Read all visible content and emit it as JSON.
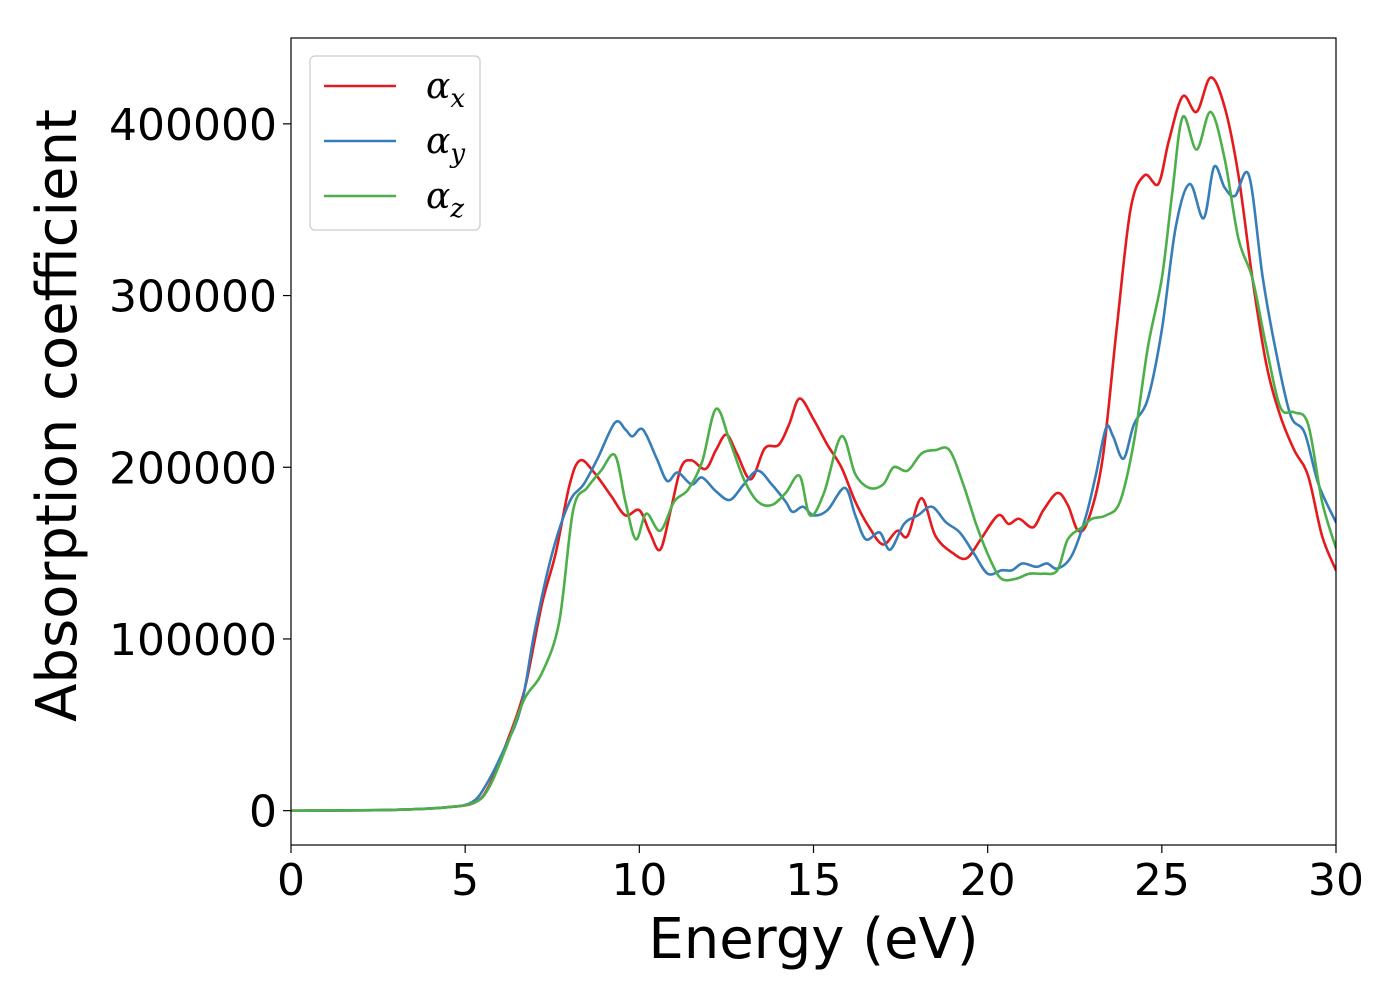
{
  "chart_data": {
    "type": "line",
    "title": "",
    "xlabel": "Energy (eV)",
    "ylabel": "Absorption coefficient",
    "xlim": [
      0,
      30
    ],
    "ylim": [
      -20000,
      450000
    ],
    "x_ticks": [
      0,
      5,
      10,
      15,
      20,
      25,
      30
    ],
    "y_ticks": [
      0,
      100000,
      200000,
      300000,
      400000
    ],
    "grid": false,
    "legend_position": "top-left",
    "series": [
      {
        "name": "αx",
        "symbol": "α",
        "subscript": "x",
        "color": "#e41a1c",
        "points": [
          [
            0,
            0
          ],
          [
            3,
            500
          ],
          [
            4.5,
            2000
          ],
          [
            5.3,
            5000
          ],
          [
            5.7,
            15000
          ],
          [
            6.2,
            40000
          ],
          [
            6.7,
            70000
          ],
          [
            7.2,
            120000
          ],
          [
            7.6,
            150000
          ],
          [
            8,
            190000
          ],
          [
            8.3,
            204000
          ],
          [
            8.7,
            197000
          ],
          [
            9.2,
            183000
          ],
          [
            9.6,
            172000
          ],
          [
            10,
            175000
          ],
          [
            10.3,
            162000
          ],
          [
            10.6,
            152000
          ],
          [
            10.9,
            175000
          ],
          [
            11.2,
            200000
          ],
          [
            11.5,
            204000
          ],
          [
            11.9,
            199000
          ],
          [
            12.2,
            210000
          ],
          [
            12.5,
            219000
          ],
          [
            12.8,
            208000
          ],
          [
            13.2,
            193000
          ],
          [
            13.6,
            211000
          ],
          [
            14,
            213000
          ],
          [
            14.3,
            225000
          ],
          [
            14.6,
            240000
          ],
          [
            15,
            228000
          ],
          [
            15.4,
            213000
          ],
          [
            15.8,
            200000
          ],
          [
            16.2,
            180000
          ],
          [
            16.6,
            165000
          ],
          [
            17,
            155000
          ],
          [
            17.4,
            163000
          ],
          [
            17.7,
            160000
          ],
          [
            18.1,
            182000
          ],
          [
            18.5,
            160000
          ],
          [
            19,
            150000
          ],
          [
            19.4,
            147000
          ],
          [
            19.8,
            158000
          ],
          [
            20.3,
            172000
          ],
          [
            20.6,
            167000
          ],
          [
            20.9,
            170000
          ],
          [
            21.3,
            165000
          ],
          [
            21.6,
            175000
          ],
          [
            22,
            185000
          ],
          [
            22.3,
            178000
          ],
          [
            22.6,
            163000
          ],
          [
            22.9,
            170000
          ],
          [
            23.3,
            205000
          ],
          [
            23.7,
            280000
          ],
          [
            24.1,
            350000
          ],
          [
            24.5,
            370000
          ],
          [
            24.9,
            365000
          ],
          [
            25.2,
            390000
          ],
          [
            25.6,
            416000
          ],
          [
            26,
            407000
          ],
          [
            26.4,
            427000
          ],
          [
            26.8,
            410000
          ],
          [
            27.2,
            370000
          ],
          [
            27.6,
            310000
          ],
          [
            28,
            260000
          ],
          [
            28.4,
            230000
          ],
          [
            28.8,
            210000
          ],
          [
            29.2,
            195000
          ],
          [
            29.6,
            160000
          ],
          [
            30,
            140000
          ]
        ]
      },
      {
        "name": "αy",
        "symbol": "α",
        "subscript": "y",
        "color": "#377eb8",
        "points": [
          [
            0,
            0
          ],
          [
            3,
            500
          ],
          [
            4.5,
            2000
          ],
          [
            5.2,
            5000
          ],
          [
            5.6,
            15000
          ],
          [
            6.1,
            35000
          ],
          [
            6.6,
            60000
          ],
          [
            7,
            105000
          ],
          [
            7.5,
            150000
          ],
          [
            8,
            180000
          ],
          [
            8.4,
            190000
          ],
          [
            8.8,
            205000
          ],
          [
            9.3,
            226000
          ],
          [
            9.6,
            222000
          ],
          [
            9.8,
            218000
          ],
          [
            10.1,
            222000
          ],
          [
            10.5,
            205000
          ],
          [
            10.8,
            192000
          ],
          [
            11.1,
            197000
          ],
          [
            11.5,
            190000
          ],
          [
            11.8,
            194000
          ],
          [
            12.2,
            186000
          ],
          [
            12.6,
            181000
          ],
          [
            13,
            190000
          ],
          [
            13.4,
            198000
          ],
          [
            13.8,
            190000
          ],
          [
            14.2,
            180000
          ],
          [
            14.4,
            174000
          ],
          [
            14.7,
            177000
          ],
          [
            15,
            172000
          ],
          [
            15.4,
            175000
          ],
          [
            15.9,
            188000
          ],
          [
            16.2,
            172000
          ],
          [
            16.5,
            158000
          ],
          [
            16.9,
            162000
          ],
          [
            17.2,
            152000
          ],
          [
            17.6,
            167000
          ],
          [
            18,
            172000
          ],
          [
            18.4,
            177000
          ],
          [
            18.8,
            168000
          ],
          [
            19.2,
            162000
          ],
          [
            19.6,
            150000
          ],
          [
            20,
            138000
          ],
          [
            20.4,
            140000
          ],
          [
            20.7,
            140000
          ],
          [
            21,
            144000
          ],
          [
            21.4,
            142000
          ],
          [
            21.7,
            144000
          ],
          [
            22,
            141000
          ],
          [
            22.4,
            148000
          ],
          [
            22.8,
            170000
          ],
          [
            23.1,
            195000
          ],
          [
            23.4,
            223000
          ],
          [
            23.6,
            218000
          ],
          [
            23.9,
            205000
          ],
          [
            24.2,
            225000
          ],
          [
            24.6,
            240000
          ],
          [
            25,
            280000
          ],
          [
            25.4,
            340000
          ],
          [
            25.8,
            365000
          ],
          [
            26.2,
            345000
          ],
          [
            26.5,
            375000
          ],
          [
            26.8,
            363000
          ],
          [
            27.1,
            358000
          ],
          [
            27.5,
            370000
          ],
          [
            27.9,
            310000
          ],
          [
            28.3,
            265000
          ],
          [
            28.7,
            230000
          ],
          [
            29.1,
            220000
          ],
          [
            29.5,
            190000
          ],
          [
            30,
            168000
          ]
        ]
      },
      {
        "name": "αz",
        "symbol": "α",
        "subscript": "z",
        "color": "#4daf4a",
        "points": [
          [
            0,
            0
          ],
          [
            3,
            500
          ],
          [
            4.5,
            2000
          ],
          [
            5.3,
            5000
          ],
          [
            5.7,
            14000
          ],
          [
            6.2,
            38000
          ],
          [
            6.7,
            65000
          ],
          [
            7.2,
            80000
          ],
          [
            7.7,
            110000
          ],
          [
            8.1,
            175000
          ],
          [
            8.5,
            188000
          ],
          [
            8.9,
            198000
          ],
          [
            9.3,
            207000
          ],
          [
            9.6,
            180000
          ],
          [
            9.9,
            158000
          ],
          [
            10.2,
            173000
          ],
          [
            10.6,
            163000
          ],
          [
            11,
            180000
          ],
          [
            11.4,
            187000
          ],
          [
            11.8,
            203000
          ],
          [
            12.2,
            234000
          ],
          [
            12.6,
            215000
          ],
          [
            13,
            193000
          ],
          [
            13.4,
            180000
          ],
          [
            13.8,
            178000
          ],
          [
            14.2,
            185000
          ],
          [
            14.6,
            195000
          ],
          [
            14.9,
            172000
          ],
          [
            15.3,
            185000
          ],
          [
            15.8,
            218000
          ],
          [
            16.2,
            196000
          ],
          [
            16.6,
            188000
          ],
          [
            17,
            190000
          ],
          [
            17.3,
            200000
          ],
          [
            17.7,
            198000
          ],
          [
            18.1,
            208000
          ],
          [
            18.5,
            210000
          ],
          [
            18.9,
            210000
          ],
          [
            19.3,
            190000
          ],
          [
            19.7,
            165000
          ],
          [
            20.1,
            145000
          ],
          [
            20.4,
            135000
          ],
          [
            20.8,
            135000
          ],
          [
            21.2,
            138000
          ],
          [
            21.6,
            138000
          ],
          [
            22,
            140000
          ],
          [
            22.3,
            158000
          ],
          [
            22.7,
            165000
          ],
          [
            23,
            170000
          ],
          [
            23.4,
            172000
          ],
          [
            23.8,
            180000
          ],
          [
            24.2,
            215000
          ],
          [
            24.6,
            270000
          ],
          [
            25,
            310000
          ],
          [
            25.3,
            360000
          ],
          [
            25.6,
            404000
          ],
          [
            26,
            385000
          ],
          [
            26.4,
            407000
          ],
          [
            26.8,
            380000
          ],
          [
            27.2,
            333000
          ],
          [
            27.6,
            310000
          ],
          [
            28,
            270000
          ],
          [
            28.4,
            235000
          ],
          [
            28.8,
            232000
          ],
          [
            29.2,
            225000
          ],
          [
            29.6,
            180000
          ],
          [
            30,
            153000
          ]
        ]
      }
    ]
  }
}
